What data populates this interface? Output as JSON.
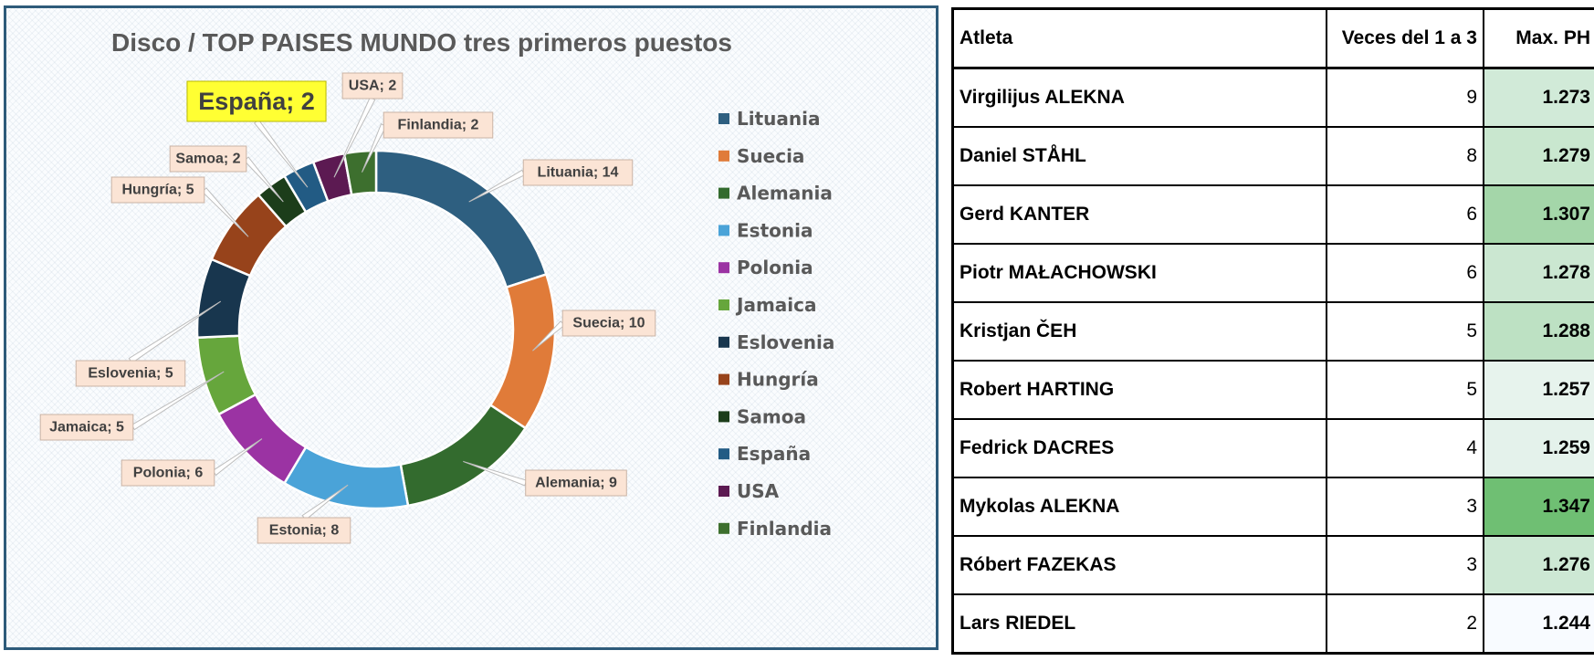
{
  "chart_data": {
    "type": "pie",
    "variant": "doughnut",
    "title": "Disco / TOP PAISES MUNDO tres primeros puestos",
    "legend_position": "right",
    "slices": [
      {
        "name": "Lituania",
        "value": 14,
        "label": "Lituania; 14",
        "color": "#2e5f80"
      },
      {
        "name": "Suecia",
        "value": 10,
        "label": "Suecia; 10",
        "color": "#e07b39"
      },
      {
        "name": "Alemania",
        "value": 9,
        "label": "Alemania; 9",
        "color": "#336b2e"
      },
      {
        "name": "Estonia",
        "value": 8,
        "label": "Estonia; 8",
        "color": "#4aa3d8"
      },
      {
        "name": "Polonia",
        "value": 6,
        "label": "Polonia; 6",
        "color": "#9b33a3"
      },
      {
        "name": "Jamaica",
        "value": 5,
        "label": "Jamaica; 5",
        "color": "#66a63c"
      },
      {
        "name": "Eslovenia",
        "value": 5,
        "label": "Eslovenia; 5",
        "color": "#18364e"
      },
      {
        "name": "Hungría",
        "value": 5,
        "label": "Hungría; 5",
        "color": "#97431b"
      },
      {
        "name": "Samoa",
        "value": 2,
        "label": "Samoa; 2",
        "color": "#1c3d1a"
      },
      {
        "name": "España",
        "value": 2,
        "label": "España; 2",
        "color": "#225b84",
        "highlight": true
      },
      {
        "name": "USA",
        "value": 2,
        "label": "USA; 2",
        "color": "#5c1a52"
      },
      {
        "name": "Finlandia",
        "value": 2,
        "label": "Finlandia; 2",
        "color": "#3d6f2e"
      }
    ]
  },
  "table": {
    "headers": [
      "Atleta",
      "Veces del 1 a 3",
      "Max. PH"
    ],
    "rows": [
      {
        "athlete": "Virgilijus ALEKNA",
        "count": "9",
        "max_ph": "1.273"
      },
      {
        "athlete": "Daniel STÅHL",
        "count": "8",
        "max_ph": "1.279"
      },
      {
        "athlete": "Gerd KANTER",
        "count": "6",
        "max_ph": "1.307"
      },
      {
        "athlete": "Piotr MAŁACHOWSKI",
        "count": "6",
        "max_ph": "1.278"
      },
      {
        "athlete": "Kristjan ČEH",
        "count": "5",
        "max_ph": "1.288"
      },
      {
        "athlete": "Robert HARTING",
        "count": "5",
        "max_ph": "1.257"
      },
      {
        "athlete": "Fedrick DACRES",
        "count": "4",
        "max_ph": "1.259"
      },
      {
        "athlete": "Mykolas ALEKNA",
        "count": "3",
        "max_ph": "1.347"
      },
      {
        "athlete": "Róbert FAZEKAS",
        "count": "3",
        "max_ph": "1.276"
      },
      {
        "athlete": "Lars RIEDEL",
        "count": "2",
        "max_ph": "1.244"
      }
    ],
    "color_scale": {
      "low": "#f8fbff",
      "high": "#6fbf73"
    }
  }
}
